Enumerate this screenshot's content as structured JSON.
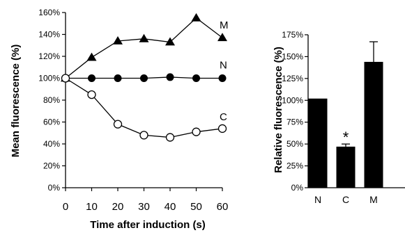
{
  "chart_data": [
    {
      "type": "line",
      "xlabel": "Time after induction (s)",
      "ylabel": "Mean fluorescence (%)",
      "x": [
        0,
        10,
        20,
        30,
        40,
        50,
        60
      ],
      "xticks": [
        "0",
        "10",
        "20",
        "30",
        "40",
        "50",
        "60"
      ],
      "yticks": [
        "0%",
        "20%",
        "40%",
        "60%",
        "80%",
        "100%",
        "120%",
        "140%",
        "160%"
      ],
      "ylim": [
        0,
        160
      ],
      "grid": false,
      "series": [
        {
          "name": "M",
          "marker": "filled-triangle",
          "values": [
            100,
            119,
            134,
            136,
            133,
            155,
            137
          ]
        },
        {
          "name": "N",
          "marker": "filled-circle",
          "values": [
            100,
            100,
            100,
            100,
            101,
            100,
            100
          ]
        },
        {
          "name": "C",
          "marker": "open-circle",
          "values": [
            100,
            85,
            58,
            48,
            46,
            51,
            54
          ]
        }
      ]
    },
    {
      "type": "bar",
      "ylabel": "Relative fluorescence (%)",
      "categories": [
        "N",
        "C",
        "M"
      ],
      "values": [
        102,
        47,
        144
      ],
      "error": [
        0,
        3,
        23
      ],
      "yticks": [
        "0%",
        "25%",
        "50%",
        "75%",
        "100%",
        "125%",
        "150%",
        "175%"
      ],
      "ylim": [
        0,
        175
      ],
      "annotation": "*",
      "annotation_on": "C",
      "bar_color": "#000000",
      "grid": false
    }
  ]
}
